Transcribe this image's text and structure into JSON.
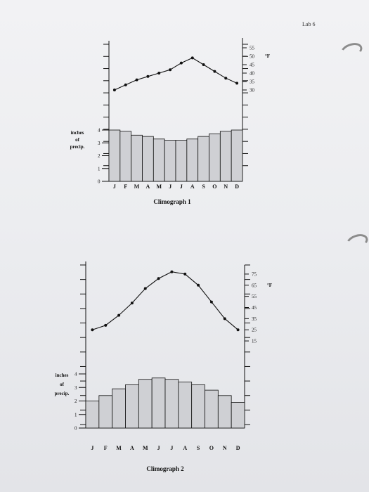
{
  "page_label": "Lab 6",
  "chart_data": [
    {
      "type": "line+bar",
      "title": "Climograph 1",
      "categories": [
        "J",
        "F",
        "M",
        "A",
        "M",
        "J",
        "J",
        "A",
        "S",
        "O",
        "N",
        "D"
      ],
      "temperature": {
        "unit": "°F",
        "values": [
          30,
          33,
          36,
          38,
          40,
          42,
          46,
          49,
          45,
          41,
          37,
          34
        ],
        "ylim": [
          25,
          55
        ],
        "ticks": [
          55,
          50,
          45,
          40,
          35,
          30
        ]
      },
      "precipitation": {
        "label_lines": [
          "inches",
          "of",
          "precip."
        ],
        "values": [
          4,
          3.9,
          3.6,
          3.5,
          3.3,
          3.2,
          3.2,
          3.3,
          3.5,
          3.7,
          3.9,
          4
        ],
        "ylim": [
          0,
          4
        ],
        "ticks": [
          4,
          3,
          2,
          1,
          0
        ]
      }
    },
    {
      "type": "line+bar",
      "title": "Climograph 2",
      "categories": [
        "J",
        "F",
        "M",
        "A",
        "M",
        "J",
        "J",
        "A",
        "S",
        "O",
        "N",
        "D"
      ],
      "temperature": {
        "unit": "°F",
        "values": [
          25,
          29,
          38,
          49,
          62,
          71,
          77,
          75,
          65,
          50,
          35,
          25
        ],
        "ylim": [
          10,
          80
        ],
        "ticks": [
          75,
          65,
          55,
          45,
          35,
          25,
          15
        ]
      },
      "precipitation": {
        "label_lines": [
          "inches",
          "of",
          "precip."
        ],
        "values": [
          2,
          2.4,
          2.9,
          3.2,
          3.6,
          3.7,
          3.6,
          3.4,
          3.2,
          2.8,
          2.4,
          1.9
        ],
        "ylim": [
          0,
          4
        ],
        "ticks": [
          4,
          3,
          2,
          1,
          0
        ]
      }
    }
  ]
}
